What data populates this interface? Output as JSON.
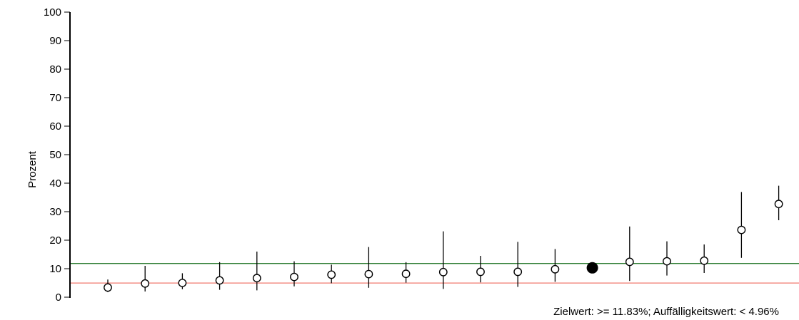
{
  "chart_data": {
    "type": "scatter",
    "ylabel": "Prozent",
    "ylim": [
      0,
      100
    ],
    "yticks": [
      0,
      10,
      20,
      30,
      40,
      50,
      60,
      70,
      80,
      90,
      100
    ],
    "grid": false,
    "caption": "Zielwert: >= 11.83%; Auffälligkeitswert: < 4.96%",
    "reference_lines": [
      {
        "value": 11.83,
        "color": "#2e7d32"
      },
      {
        "value": 4.96,
        "color": "#f0796e"
      }
    ],
    "points": [
      {
        "y": 3.4,
        "lo": 1.8,
        "hi": 6.2,
        "highlight": false
      },
      {
        "y": 4.8,
        "lo": 2.0,
        "hi": 11.0,
        "highlight": false
      },
      {
        "y": 5.0,
        "lo": 2.8,
        "hi": 8.4,
        "highlight": false
      },
      {
        "y": 5.9,
        "lo": 2.6,
        "hi": 12.3,
        "highlight": false
      },
      {
        "y": 6.7,
        "lo": 2.4,
        "hi": 16.0,
        "highlight": false
      },
      {
        "y": 7.1,
        "lo": 3.8,
        "hi": 12.6,
        "highlight": false
      },
      {
        "y": 7.9,
        "lo": 4.9,
        "hi": 11.4,
        "highlight": false
      },
      {
        "y": 8.1,
        "lo": 3.3,
        "hi": 17.6,
        "highlight": false
      },
      {
        "y": 8.2,
        "lo": 5.1,
        "hi": 12.3,
        "highlight": false
      },
      {
        "y": 8.8,
        "lo": 2.9,
        "hi": 23.1,
        "highlight": false
      },
      {
        "y": 8.9,
        "lo": 5.2,
        "hi": 14.5,
        "highlight": false
      },
      {
        "y": 8.9,
        "lo": 3.6,
        "hi": 19.4,
        "highlight": false
      },
      {
        "y": 9.8,
        "lo": 5.4,
        "hi": 16.9,
        "highlight": false
      },
      {
        "y": 10.3,
        "lo": 10.3,
        "hi": 10.3,
        "highlight": true
      },
      {
        "y": 12.4,
        "lo": 5.7,
        "hi": 24.8,
        "highlight": false
      },
      {
        "y": 12.6,
        "lo": 7.6,
        "hi": 19.6,
        "highlight": false
      },
      {
        "y": 12.8,
        "lo": 8.5,
        "hi": 18.5,
        "highlight": false
      },
      {
        "y": 23.6,
        "lo": 13.8,
        "hi": 36.9,
        "highlight": false
      },
      {
        "y": 32.7,
        "lo": 27.0,
        "hi": 39.1,
        "highlight": false
      }
    ]
  },
  "colors": {
    "axis": "#000000",
    "marker": "#000000",
    "target_line": "#2e7d32",
    "threshold_line": "#f0796e"
  }
}
